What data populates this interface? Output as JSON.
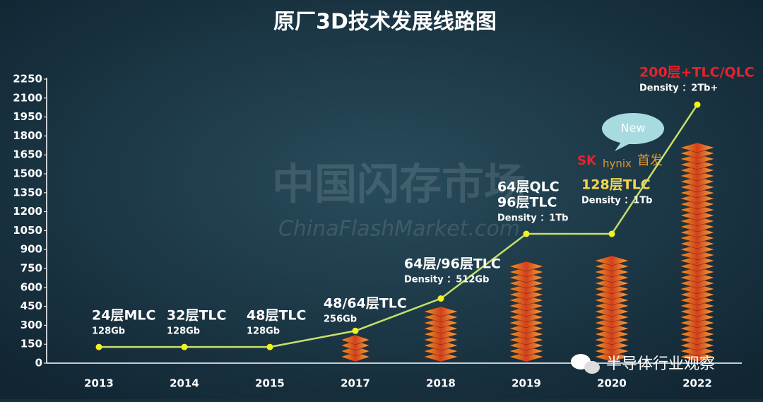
{
  "chart_data": {
    "type": "line",
    "title": "原厂3D技术发展线路图",
    "categories": [
      "2013",
      "2014",
      "2015",
      "2017",
      "2018",
      "2019",
      "2020",
      "2022"
    ],
    "values": [
      128,
      128,
      128,
      256,
      512,
      1024,
      1024,
      2048
    ],
    "color": "#c6e06a",
    "point_color": "#f2f21e",
    "ylim": [
      0,
      2250
    ],
    "yticks": [
      0,
      150,
      300,
      450,
      600,
      750,
      900,
      1050,
      1200,
      1350,
      1500,
      1650,
      1800,
      1950,
      2100,
      2250
    ],
    "grid": false,
    "annotations": [
      {
        "lines": [
          "24层MLC",
          "128Gb"
        ],
        "color": "#ffffff"
      },
      {
        "lines": [
          "32层TLC",
          "128Gb"
        ],
        "color": "#ffffff"
      },
      {
        "lines": [
          "48层TLC",
          "128Gb"
        ],
        "color": "#ffffff"
      },
      {
        "lines": [
          "48/64层TLC",
          "256Gb"
        ],
        "color": "#ffffff"
      },
      {
        "lines": [
          "64层/96层TLC",
          "Density ：512Gb"
        ],
        "color": "#ffffff"
      },
      {
        "lines": [
          "64层QLC",
          "96层TLC",
          "Density ：1Tb"
        ],
        "color": "#ffffff"
      },
      {
        "lines": [
          "128层TLC",
          "Density ：1Tb"
        ],
        "color": "#f3d552"
      },
      {
        "lines": [
          "200层+TLC/QLC",
          "Density ：2Tb+"
        ],
        "color": "#e8222a"
      }
    ],
    "badge": "New",
    "brand": {
      "logo": "SK",
      "name": "hynix",
      "note": "首发"
    },
    "watermark": [
      "中国闪存市场",
      "ChinaFlashMarket.com"
    ],
    "source": "半导体行业观察"
  }
}
